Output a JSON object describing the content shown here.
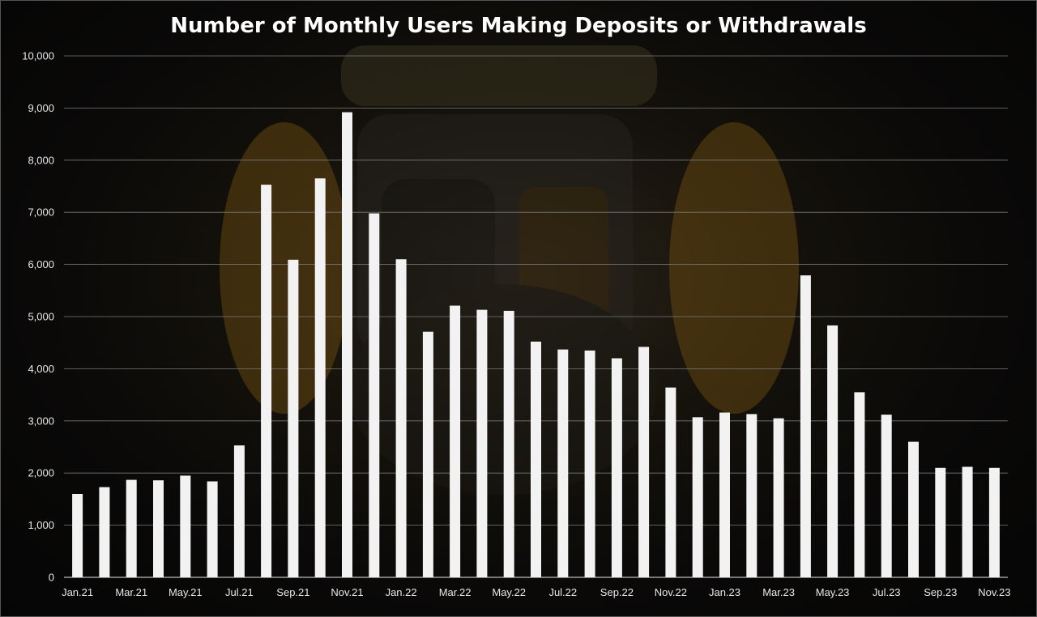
{
  "chart_data": {
    "type": "bar",
    "title": "Number of Monthly Users Making Deposits or Withdrawals",
    "xlabel": "",
    "ylabel": "",
    "ylim": [
      0,
      10000
    ],
    "yticks": [
      "0",
      "1,000",
      "2,000",
      "3,000",
      "4,000",
      "5,000",
      "6,000",
      "7,000",
      "8,000",
      "9,000",
      "10,000"
    ],
    "grid": true,
    "legend": "none",
    "bar_color": "#f2f2f2",
    "grid_color": "#7a7a7a",
    "categories": [
      "Jan.21",
      "Feb.21",
      "Mar.21",
      "Apr.21",
      "May.21",
      "Jun.21",
      "Jul.21",
      "Aug.21",
      "Sep.21",
      "Oct.21",
      "Nov.21",
      "Dec.21",
      "Jan.22",
      "Feb.22",
      "Mar.22",
      "Apr.22",
      "May.22",
      "Jun.22",
      "Jul.22",
      "Aug.22",
      "Sep.22",
      "Oct.22",
      "Nov.22",
      "Dec.22",
      "Jan.23",
      "Feb.23",
      "Mar.23",
      "Apr.23",
      "May.23",
      "Jun.23",
      "Jul.23",
      "Aug.23",
      "Sep.23",
      "Oct.23",
      "Nov.23"
    ],
    "xtick_labels": [
      "Jan.21",
      "",
      "Mar.21",
      "",
      "May.21",
      "",
      "Jul.21",
      "",
      "Sep.21",
      "",
      "Nov.21",
      "",
      "Jan.22",
      "",
      "Mar.22",
      "",
      "May.22",
      "",
      "Jul.22",
      "",
      "Sep.22",
      "",
      "Nov.22",
      "",
      "Jan.23",
      "",
      "Mar.23",
      "",
      "May.23",
      "",
      "Jul.23",
      "",
      "Sep.23",
      "",
      "Nov.23"
    ],
    "values": [
      1600,
      1730,
      1870,
      1860,
      1950,
      1840,
      2530,
      7530,
      6090,
      7650,
      8920,
      6980,
      6100,
      4710,
      5210,
      5130,
      5110,
      4520,
      4370,
      4350,
      4200,
      4420,
      3640,
      3070,
      3160,
      3130,
      3050,
      5790,
      4830,
      3550,
      3120,
      2600,
      2100,
      2120,
      2100
    ]
  }
}
